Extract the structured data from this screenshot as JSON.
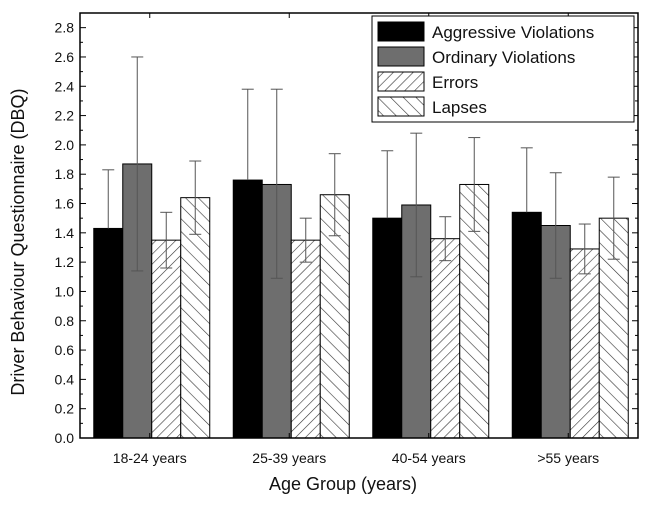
{
  "chart_data": {
    "type": "bar",
    "xlabel": "Age Group (years)",
    "ylabel": "Driver Behaviour Questionnaire (DBQ)",
    "ylim": [
      0,
      2.9
    ],
    "yticks": [
      "0.0",
      "0.2",
      "0.4",
      "0.6",
      "0.8",
      "1.0",
      "1.2",
      "1.4",
      "1.6",
      "1.8",
      "2.0",
      "2.2",
      "2.4",
      "2.6",
      "2.8"
    ],
    "categories": [
      "18-24 years",
      "25-39 years",
      "40-54 years",
      ">55 years"
    ],
    "legend_position": "top-right",
    "grid": false,
    "series": [
      {
        "name": "Aggressive Violations",
        "fill": "#000000",
        "pattern": "solid",
        "values": [
          1.43,
          1.76,
          1.5,
          1.54
        ],
        "error_high": [
          1.83,
          2.38,
          1.96,
          1.98
        ],
        "error_low": [
          1.43,
          1.76,
          1.5,
          1.54
        ]
      },
      {
        "name": "Ordinary Violations",
        "fill": "#6e6e6e",
        "pattern": "solid",
        "values": [
          1.87,
          1.73,
          1.59,
          1.45
        ],
        "error_high": [
          2.6,
          2.38,
          2.08,
          1.81
        ],
        "error_low": [
          1.14,
          1.09,
          1.1,
          1.09
        ]
      },
      {
        "name": "Errors",
        "fill": "#ffffff",
        "pattern": "forward-hatch",
        "values": [
          1.35,
          1.35,
          1.36,
          1.29
        ],
        "error_high": [
          1.54,
          1.5,
          1.51,
          1.46
        ],
        "error_low": [
          1.16,
          1.2,
          1.21,
          1.12
        ]
      },
      {
        "name": "Lapses",
        "fill": "#ffffff",
        "pattern": "back-hatch",
        "values": [
          1.64,
          1.66,
          1.73,
          1.5
        ],
        "error_high": [
          1.89,
          1.94,
          2.05,
          1.78
        ],
        "error_low": [
          1.39,
          1.38,
          1.41,
          1.22
        ]
      }
    ]
  }
}
